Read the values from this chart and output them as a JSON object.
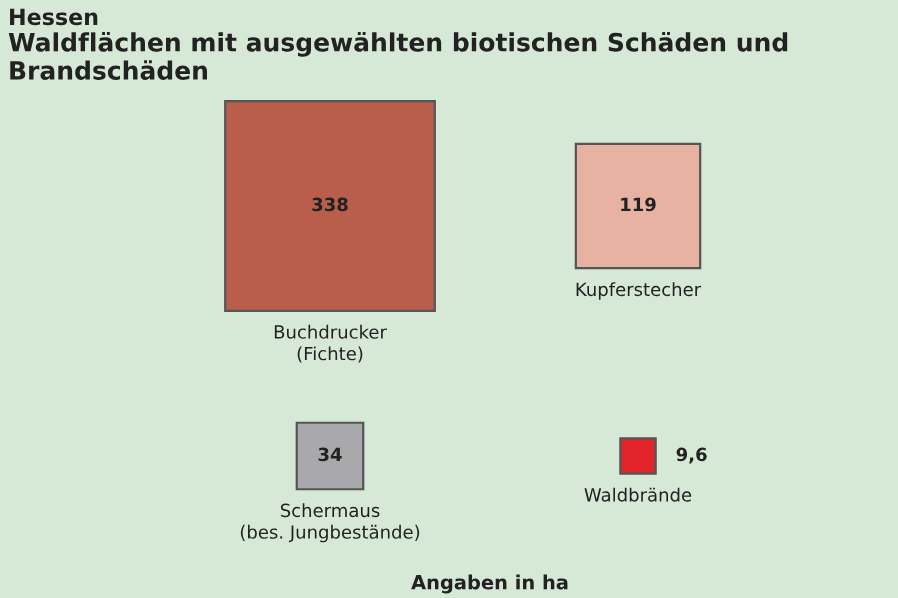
{
  "chart_data": {
    "type": "other",
    "subtitle": "Hessen",
    "title": "Waldflächen mit ausgewählten biotischen Schäden und Brandschäden",
    "categories": [
      "Buchdrucker\n(Fichte)",
      "Kupferstecher",
      "Schermaus\n(bes. Jungbestände)",
      "Waldbrände"
    ],
    "values": [
      338,
      119,
      34,
      9.6
    ],
    "value_labels": [
      "338",
      "119",
      "34",
      "9,6"
    ],
    "colors": [
      "#b85e4a",
      "#e8b2a2",
      "#a9a9ab",
      "#e0242a"
    ],
    "annotations": [
      "Angaben in ha"
    ]
  }
}
